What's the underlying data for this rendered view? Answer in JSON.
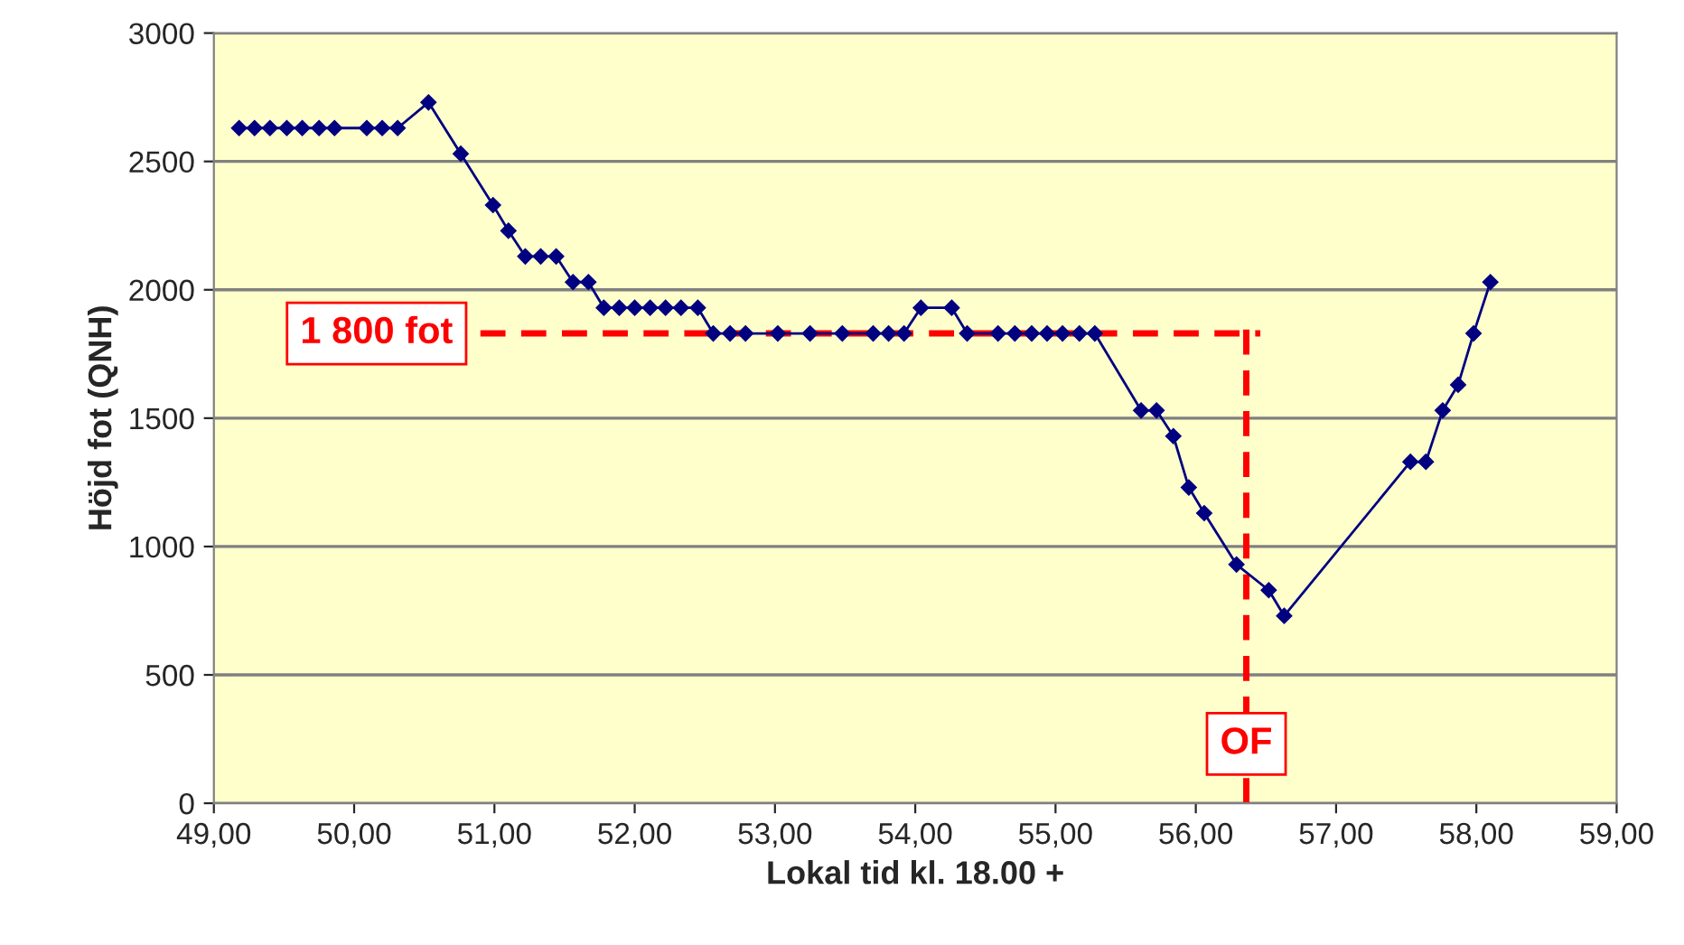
{
  "chart_data": {
    "type": "line",
    "xlabel": "Lokal tid kl. 18.00 +",
    "ylabel": "Höjd fot (QNH)",
    "x": [
      49.18,
      49.29,
      49.4,
      49.52,
      49.63,
      49.75,
      49.86,
      50.09,
      50.2,
      50.31,
      50.53,
      50.76,
      50.99,
      51.1,
      51.22,
      51.33,
      51.44,
      51.56,
      51.67,
      51.78,
      51.89,
      52.0,
      52.11,
      52.22,
      52.33,
      52.45,
      52.56,
      52.68,
      52.79,
      53.02,
      53.25,
      53.48,
      53.7,
      53.81,
      53.92,
      54.04,
      54.26,
      54.37,
      54.59,
      54.71,
      54.83,
      54.94,
      55.05,
      55.17,
      55.28,
      55.61,
      55.72,
      55.84,
      55.95,
      56.06,
      56.29,
      56.52,
      56.63,
      57.53,
      57.64,
      57.76,
      57.87,
      57.98,
      58.1
    ],
    "series": [
      {
        "color": "#000080",
        "values": [
          2630,
          2630,
          2630,
          2630,
          2630,
          2630,
          2630,
          2630,
          2630,
          2630,
          2730,
          2530,
          2330,
          2230,
          2130,
          2130,
          2130,
          2030,
          2030,
          1930,
          1930,
          1930,
          1930,
          1930,
          1930,
          1930,
          1830,
          1830,
          1830,
          1830,
          1830,
          1830,
          1830,
          1830,
          1830,
          1930,
          1930,
          1830,
          1830,
          1830,
          1830,
          1830,
          1830,
          1830,
          1830,
          1530,
          1530,
          1430,
          1230,
          1130,
          930,
          830,
          730,
          1330,
          1330,
          1530,
          1630,
          1830,
          2030
        ]
      }
    ],
    "marker": "diamond",
    "line_style": "solid",
    "grid": "y",
    "xlim": [
      49,
      59
    ],
    "xticks": [
      {
        "value": 49,
        "label": "49,00"
      },
      {
        "value": 50,
        "label": "50,00"
      },
      {
        "value": 51,
        "label": "51,00"
      },
      {
        "value": 52,
        "label": "52,00"
      },
      {
        "value": 53,
        "label": "53,00"
      },
      {
        "value": 54,
        "label": "54,00"
      },
      {
        "value": 55,
        "label": "55,00"
      },
      {
        "value": 56,
        "label": "56,00"
      },
      {
        "value": 57,
        "label": "57,00"
      },
      {
        "value": 58,
        "label": "58,00"
      },
      {
        "value": 59,
        "label": "59,00"
      }
    ],
    "ylim": [
      0,
      3000
    ],
    "yticks": [
      0,
      500,
      1000,
      1500,
      2000,
      2500,
      3000
    ],
    "ref_lines": [
      {
        "axis": "y",
        "value": 1830,
        "color": "#ff0000",
        "line_style": "dashed",
        "label": "1 800 fot"
      },
      {
        "axis": "x",
        "value": 56.36,
        "color": "#ff0000",
        "line_style": "dashed",
        "label": "OF"
      }
    ]
  }
}
